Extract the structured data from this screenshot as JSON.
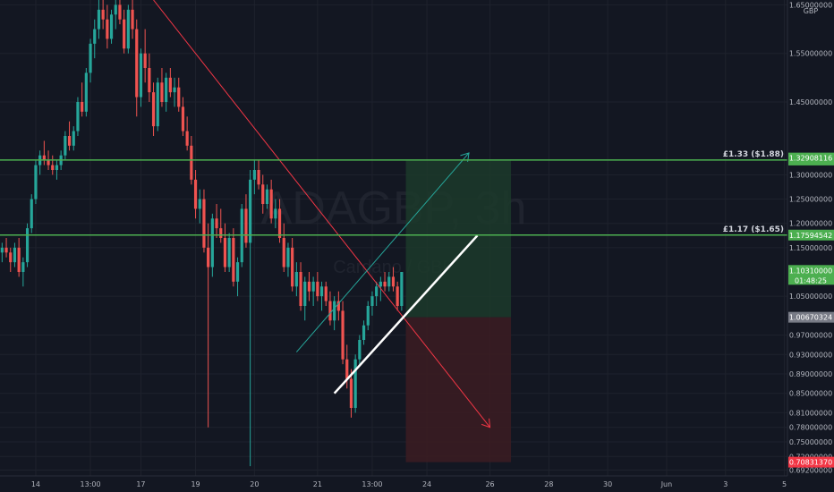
{
  "chart_data": {
    "type": "candlestick",
    "symbol_watermark": "ADAGBP, 3h",
    "watermark_sub": "Cardano / GBP",
    "currency": "GBP",
    "y_axis": {
      "ylim": [
        0.68,
        1.66
      ],
      "ticks": [
        "1.65000000",
        "1.55000000",
        "1.45000000",
        "1.30000000",
        "1.25000000",
        "1.20000000",
        "1.15000000",
        "1.05000000",
        "0.97000000",
        "0.93000000",
        "0.89000000",
        "0.85000000",
        "0.81000000",
        "0.78000000",
        "0.75000000",
        "0.72000000",
        "0.69200000"
      ],
      "tick_values": [
        1.65,
        1.55,
        1.45,
        1.3,
        1.25,
        1.2,
        1.15,
        1.05,
        0.97,
        0.93,
        0.89,
        0.85,
        0.81,
        0.78,
        0.75,
        0.72,
        0.692
      ]
    },
    "x_axis": {
      "ticks": [
        "14",
        "13:00",
        "17",
        "19",
        "20",
        "21",
        "13:00",
        "24",
        "26",
        "28",
        "30",
        "Jun",
        "3",
        "5"
      ],
      "tick_index": [
        8,
        21,
        33,
        46,
        60,
        75,
        88,
        101,
        116,
        130,
        144,
        158,
        172,
        186
      ]
    },
    "horizontal_levels": [
      {
        "label": "£1.33 ($1.88)",
        "price": 1.33042818,
        "tag": "1.33042818",
        "color": "#4caf50"
      },
      {
        "label": "£1.17 ($1.65)",
        "price": 1.17594542,
        "tag": "1.17594542",
        "color": "#4caf50"
      }
    ],
    "price_tags": [
      {
        "value": 1.32908116,
        "text": "1.32908116",
        "color": "#4caf50",
        "text_color": "#ffffff"
      },
      {
        "value": 1.1031,
        "text": "1.10310000",
        "sub": "01:48:25",
        "color": "#4caf50",
        "text_color": "#ffffff"
      },
      {
        "value": 1.00670324,
        "text": "1.00670324",
        "color": "#787b86",
        "text_color": "#ffffff"
      },
      {
        "value": 0.7083137,
        "text": "0.70831370",
        "color": "#f23645",
        "text_color": "#ffffff"
      }
    ],
    "position": {
      "entry": 1.00670324,
      "target": 1.32908116,
      "stop": 0.7083137,
      "start_index": 96,
      "end_index": 121
    },
    "candles": [
      [
        1.14,
        1.16,
        1.12,
        1.15
      ],
      [
        1.15,
        1.17,
        1.13,
        1.14
      ],
      [
        1.14,
        1.15,
        1.1,
        1.12
      ],
      [
        1.12,
        1.16,
        1.11,
        1.15
      ],
      [
        1.15,
        1.17,
        1.09,
        1.1
      ],
      [
        1.1,
        1.13,
        1.07,
        1.12
      ],
      [
        1.12,
        1.2,
        1.11,
        1.19
      ],
      [
        1.19,
        1.26,
        1.18,
        1.25
      ],
      [
        1.25,
        1.33,
        1.24,
        1.32
      ],
      [
        1.32,
        1.35,
        1.3,
        1.34
      ],
      [
        1.34,
        1.37,
        1.32,
        1.33
      ],
      [
        1.33,
        1.35,
        1.31,
        1.32
      ],
      [
        1.32,
        1.34,
        1.3,
        1.31
      ],
      [
        1.31,
        1.33,
        1.29,
        1.32
      ],
      [
        1.32,
        1.35,
        1.31,
        1.34
      ],
      [
        1.34,
        1.39,
        1.33,
        1.38
      ],
      [
        1.38,
        1.41,
        1.35,
        1.36
      ],
      [
        1.36,
        1.4,
        1.35,
        1.39
      ],
      [
        1.39,
        1.46,
        1.38,
        1.45
      ],
      [
        1.45,
        1.49,
        1.42,
        1.43
      ],
      [
        1.43,
        1.52,
        1.42,
        1.51
      ],
      [
        1.51,
        1.58,
        1.49,
        1.57
      ],
      [
        1.57,
        1.62,
        1.54,
        1.6
      ],
      [
        1.6,
        1.66,
        1.58,
        1.64
      ],
      [
        1.64,
        1.66,
        1.6,
        1.62
      ],
      [
        1.62,
        1.65,
        1.56,
        1.58
      ],
      [
        1.58,
        1.64,
        1.57,
        1.63
      ],
      [
        1.63,
        1.66,
        1.6,
        1.65
      ],
      [
        1.65,
        1.66,
        1.61,
        1.62
      ],
      [
        1.62,
        1.64,
        1.55,
        1.56
      ],
      [
        1.56,
        1.65,
        1.55,
        1.64
      ],
      [
        1.64,
        1.66,
        1.58,
        1.6
      ],
      [
        1.6,
        1.62,
        1.42,
        1.46
      ],
      [
        1.46,
        1.56,
        1.44,
        1.55
      ],
      [
        1.55,
        1.6,
        1.49,
        1.52
      ],
      [
        1.52,
        1.55,
        1.45,
        1.47
      ],
      [
        1.47,
        1.49,
        1.38,
        1.4
      ],
      [
        1.4,
        1.5,
        1.39,
        1.49
      ],
      [
        1.49,
        1.52,
        1.44,
        1.45
      ],
      [
        1.45,
        1.51,
        1.43,
        1.5
      ],
      [
        1.5,
        1.52,
        1.46,
        1.47
      ],
      [
        1.47,
        1.5,
        1.44,
        1.48
      ],
      [
        1.48,
        1.5,
        1.43,
        1.44
      ],
      [
        1.44,
        1.46,
        1.38,
        1.39
      ],
      [
        1.39,
        1.42,
        1.35,
        1.36
      ],
      [
        1.36,
        1.38,
        1.28,
        1.29
      ],
      [
        1.29,
        1.31,
        1.21,
        1.23
      ],
      [
        1.23,
        1.27,
        1.2,
        1.25
      ],
      [
        1.25,
        1.27,
        1.14,
        1.15
      ],
      [
        1.15,
        1.2,
        0.78,
        1.11
      ],
      [
        1.11,
        1.22,
        1.09,
        1.21
      ],
      [
        1.21,
        1.24,
        1.17,
        1.19
      ],
      [
        1.19,
        1.23,
        1.16,
        1.17
      ],
      [
        1.17,
        1.2,
        1.1,
        1.11
      ],
      [
        1.11,
        1.18,
        1.1,
        1.17
      ],
      [
        1.17,
        1.19,
        1.07,
        1.08
      ],
      [
        1.08,
        1.13,
        1.05,
        1.12
      ],
      [
        1.12,
        1.24,
        1.11,
        1.23
      ],
      [
        1.23,
        1.26,
        1.15,
        1.16
      ],
      [
        1.16,
        1.31,
        0.7,
        1.29
      ],
      [
        1.29,
        1.33,
        1.26,
        1.31
      ],
      [
        1.31,
        1.33,
        1.27,
        1.28
      ],
      [
        1.28,
        1.3,
        1.22,
        1.24
      ],
      [
        1.24,
        1.28,
        1.23,
        1.27
      ],
      [
        1.27,
        1.29,
        1.2,
        1.21
      ],
      [
        1.21,
        1.25,
        1.19,
        1.23
      ],
      [
        1.23,
        1.25,
        1.16,
        1.17
      ],
      [
        1.17,
        1.2,
        1.1,
        1.11
      ],
      [
        1.11,
        1.16,
        1.09,
        1.15
      ],
      [
        1.15,
        1.17,
        1.06,
        1.07
      ],
      [
        1.07,
        1.12,
        1.05,
        1.1
      ],
      [
        1.1,
        1.12,
        1.02,
        1.03
      ],
      [
        1.03,
        1.09,
        1.0,
        1.08
      ],
      [
        1.08,
        1.1,
        1.04,
        1.06
      ],
      [
        1.06,
        1.09,
        1.03,
        1.08
      ],
      [
        1.08,
        1.1,
        1.04,
        1.05
      ],
      [
        1.05,
        1.08,
        1.02,
        1.07
      ],
      [
        1.07,
        1.08,
        1.03,
        1.04
      ],
      [
        1.04,
        1.06,
        0.99,
        1.0
      ],
      [
        1.0,
        1.05,
        0.98,
        1.04
      ],
      [
        1.04,
        1.06,
        1.0,
        1.02
      ],
      [
        1.02,
        1.04,
        0.91,
        0.92
      ],
      [
        0.92,
        0.95,
        0.86,
        0.88
      ],
      [
        0.88,
        0.9,
        0.8,
        0.82
      ],
      [
        0.82,
        0.93,
        0.81,
        0.92
      ],
      [
        0.92,
        0.97,
        0.91,
        0.96
      ],
      [
        0.96,
        1.0,
        0.95,
        0.99
      ],
      [
        0.99,
        1.04,
        0.98,
        1.03
      ],
      [
        1.03,
        1.06,
        1.01,
        1.05
      ],
      [
        1.05,
        1.08,
        1.03,
        1.07
      ],
      [
        1.07,
        1.09,
        1.04,
        1.08
      ],
      [
        1.08,
        1.1,
        1.06,
        1.07
      ],
      [
        1.07,
        1.1,
        1.06,
        1.09
      ],
      [
        1.09,
        1.11,
        1.06,
        1.07
      ],
      [
        1.07,
        1.08,
        1.02,
        1.03
      ],
      [
        1.03,
        1.1,
        1.02,
        1.1
      ]
    ]
  }
}
